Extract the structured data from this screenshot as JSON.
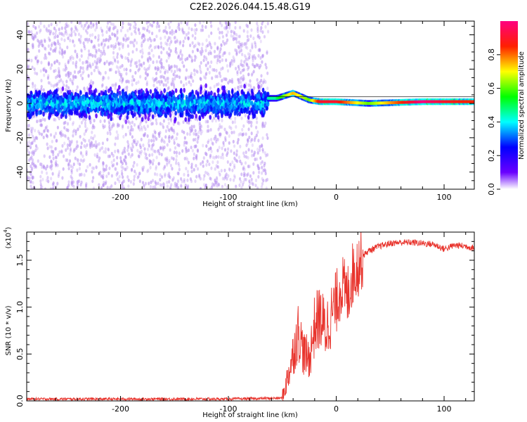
{
  "chart_data": [
    {
      "type": "heatmap",
      "title": "C2E2.2026.044.15.48.G19",
      "xlabel": "Height of straight line (km)",
      "ylabel": "Frequency (Hz)",
      "xlim": [
        -287,
        128
      ],
      "ylim": [
        -50,
        48
      ],
      "x_ticks": [
        -200,
        -100,
        0,
        100
      ],
      "x_tick_labels": [
        "-200",
        "-100",
        "0",
        "100"
      ],
      "y_ticks": [
        -40,
        -20,
        0,
        20,
        40
      ],
      "y_tick_labels": [
        "-40",
        "-20",
        "0",
        "20",
        "40"
      ],
      "noise_region": [
        -287,
        -63
      ],
      "signal_region": [
        -63,
        128
      ],
      "ridges": [
        {
          "x": -55,
          "freq": 3,
          "amp": 0.5
        },
        {
          "x": -40,
          "freq": 6,
          "amp": 0.75
        },
        {
          "x": -25,
          "freq": 2,
          "amp": 0.6
        },
        {
          "x": -15,
          "freq": 1,
          "amp": 0.9
        },
        {
          "x": 0,
          "freq": 1,
          "amp": 0.9
        },
        {
          "x": 30,
          "freq": 0,
          "amp": 0.6
        },
        {
          "x": 80,
          "freq": 1,
          "amp": 1.0
        },
        {
          "x": 100,
          "freq": 1,
          "amp": 0.9
        },
        {
          "x": 120,
          "freq": 1,
          "amp": 0.85
        }
      ],
      "colorbar": {
        "label": "Normalized spectral amplitude",
        "ticks": [
          0.0,
          0.2,
          0.4,
          0.6,
          0.8
        ],
        "tick_labels": [
          "0.0",
          "0.2",
          "0.4",
          "0.6",
          "0.8"
        ],
        "range": [
          0,
          1
        ]
      }
    },
    {
      "type": "line",
      "xlabel": "Height of straight line (km)",
      "ylabel": "SNR (10 * v/v)",
      "scale_label": "(x10",
      "scale_exponent": "4",
      "scale_close": ")",
      "xlim": [
        -287,
        128
      ],
      "ylim": [
        0,
        1.8
      ],
      "x_ticks": [
        -200,
        -100,
        0,
        100
      ],
      "x_tick_labels": [
        "-200",
        "-100",
        "0",
        "100"
      ],
      "y_ticks": [
        0.0,
        0.5,
        1.0,
        1.5
      ],
      "y_tick_labels": [
        "0.0",
        "0.5",
        "1.0",
        "1.5"
      ],
      "series": [
        {
          "name": "SNR",
          "color": "#e8332c",
          "x": [
            -287,
            -200,
            -100,
            -50,
            -45,
            -40,
            -35,
            -30,
            -25,
            -20,
            -15,
            -10,
            -5,
            0,
            5,
            10,
            15,
            20,
            25,
            30,
            40,
            50,
            60,
            70,
            80,
            90,
            100,
            110,
            120,
            128
          ],
          "y": [
            0.02,
            0.02,
            0.02,
            0.03,
            0.25,
            0.5,
            0.75,
            0.5,
            0.45,
            0.8,
            0.9,
            0.75,
            0.9,
            1.05,
            1.25,
            1.1,
            1.35,
            1.45,
            1.55,
            1.6,
            1.65,
            1.68,
            1.69,
            1.69,
            1.68,
            1.67,
            1.62,
            1.66,
            1.65,
            1.63
          ]
        }
      ]
    }
  ]
}
